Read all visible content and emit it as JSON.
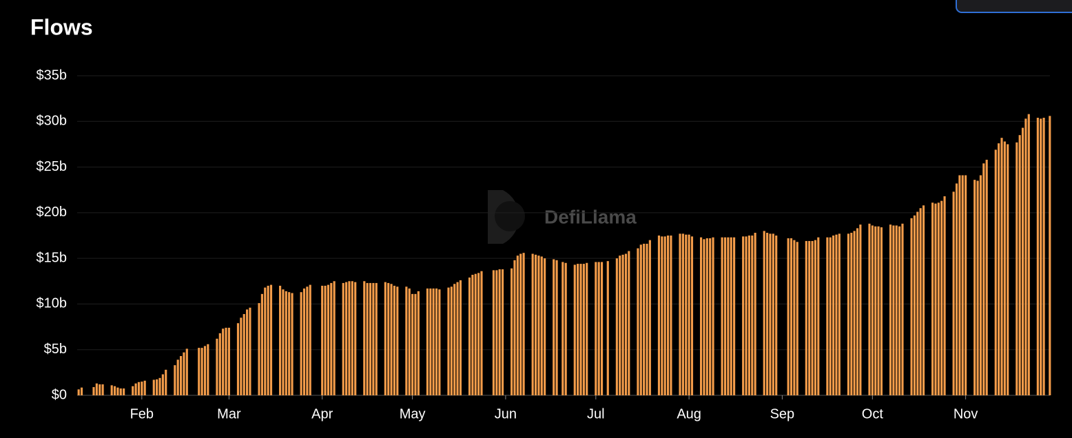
{
  "chart_data": {
    "type": "bar",
    "title": "Flows",
    "watermark": "DefiLlama",
    "color": "#f39c4a",
    "grid": true,
    "ylim": [
      0,
      35
    ],
    "yticks": [
      {
        "value": 0,
        "label": "$0"
      },
      {
        "value": 5,
        "label": "$5b"
      },
      {
        "value": 10,
        "label": "$10b"
      },
      {
        "value": 15,
        "label": "$15b"
      },
      {
        "value": 20,
        "label": "$20b"
      },
      {
        "value": 25,
        "label": "$25b"
      },
      {
        "value": 30,
        "label": "$30b"
      },
      {
        "value": 35,
        "label": "$35b"
      }
    ],
    "categories": [
      null,
      null,
      null,
      null,
      null,
      null,
      null,
      null,
      null,
      null,
      null,
      null,
      null,
      null,
      null,
      null,
      null,
      null,
      null,
      null,
      null,
      "Feb",
      null,
      null,
      null,
      null,
      null,
      null,
      null,
      null,
      null,
      null,
      null,
      null,
      null,
      null,
      null,
      null,
      null,
      null,
      null,
      null,
      null,
      null,
      null,
      null,
      null,
      null,
      null,
      null,
      "Mar",
      null,
      null,
      null,
      null,
      null,
      null,
      null,
      null,
      null,
      null,
      null,
      null,
      null,
      null,
      null,
      null,
      null,
      null,
      null,
      null,
      null,
      null,
      null,
      null,
      null,
      null,
      null,
      null,
      null,
      null,
      "Apr",
      null,
      null,
      null,
      null,
      null,
      null,
      null,
      null,
      null,
      null,
      null,
      null,
      null,
      null,
      null,
      null,
      null,
      null,
      null,
      null,
      null,
      null,
      null,
      null,
      null,
      null,
      null,
      null,
      null,
      "May",
      null,
      null,
      null,
      null,
      null,
      null,
      null,
      null,
      null,
      null,
      null,
      null,
      null,
      null,
      null,
      null,
      null,
      null,
      null,
      null,
      null,
      null,
      null,
      null,
      null,
      null,
      null,
      null,
      null,
      null,
      "Jun",
      null,
      null,
      null,
      null,
      null,
      null,
      null,
      null,
      null,
      null,
      null,
      null,
      null,
      null,
      null,
      null,
      null,
      null,
      null,
      null,
      null,
      null,
      null,
      null,
      null,
      null,
      null,
      null,
      null,
      "Jul",
      null,
      null,
      null,
      null,
      null,
      null,
      null,
      null,
      null,
      null,
      null,
      null,
      null,
      null,
      null,
      null,
      null,
      null,
      null,
      null,
      null,
      null,
      null,
      null,
      null,
      null,
      null,
      null,
      null,
      null,
      "Aug",
      null,
      null,
      null,
      null,
      null,
      null,
      null,
      null,
      null,
      null,
      null,
      null,
      null,
      null,
      null,
      null,
      null,
      null,
      null,
      null,
      null,
      null,
      null,
      null,
      null,
      null,
      null,
      null,
      null,
      null,
      "Sep",
      null,
      null,
      null,
      null,
      null,
      null,
      null,
      null,
      null,
      null,
      null,
      null,
      null,
      null,
      null,
      null,
      null,
      null,
      null,
      null,
      null,
      null,
      null,
      null,
      null,
      null,
      null,
      null,
      null,
      "Oct",
      null,
      null,
      null,
      null,
      null,
      null,
      null,
      null,
      null,
      null,
      null,
      null,
      null,
      null,
      null,
      null,
      null,
      null,
      null,
      null,
      null,
      null,
      null,
      null,
      null,
      null,
      null,
      null,
      null,
      null,
      "Nov",
      null,
      null,
      null,
      null,
      null,
      null,
      null,
      null,
      null,
      null,
      null,
      null,
      null,
      null,
      null,
      null,
      null,
      null,
      null,
      null,
      null,
      null,
      null,
      null,
      null,
      null,
      null,
      null
    ],
    "values": [
      0.65,
      0.85,
      null,
      null,
      null,
      0.9,
      1.3,
      1.2,
      1.2,
      null,
      null,
      1.1,
      1.0,
      0.85,
      0.75,
      0.75,
      null,
      null,
      1.0,
      1.3,
      1.45,
      1.5,
      1.6,
      null,
      null,
      1.7,
      1.75,
      1.9,
      2.3,
      2.8,
      null,
      null,
      3.3,
      3.9,
      4.3,
      4.7,
      5.1,
      null,
      null,
      null,
      5.2,
      5.2,
      5.4,
      5.6,
      null,
      null,
      6.2,
      6.8,
      7.3,
      7.4,
      7.4,
      null,
      null,
      7.9,
      8.5,
      8.9,
      9.4,
      9.6,
      null,
      null,
      10.1,
      11.1,
      11.8,
      12.0,
      12.1,
      null,
      null,
      12.0,
      11.6,
      11.4,
      11.3,
      11.2,
      null,
      null,
      11.3,
      11.7,
      11.9,
      12.1,
      null,
      null,
      null,
      12.0,
      12.0,
      12.1,
      12.3,
      12.5,
      null,
      null,
      12.3,
      12.4,
      12.5,
      12.5,
      12.4,
      null,
      null,
      12.5,
      12.3,
      12.3,
      12.3,
      12.3,
      null,
      null,
      12.4,
      12.3,
      12.2,
      12.0,
      11.9,
      null,
      null,
      11.9,
      11.7,
      11.1,
      11.1,
      11.4,
      null,
      null,
      11.7,
      11.7,
      11.7,
      11.7,
      11.6,
      null,
      null,
      11.8,
      11.9,
      12.2,
      12.4,
      12.6,
      null,
      null,
      12.9,
      13.2,
      13.3,
      13.4,
      13.6,
      null,
      null,
      null,
      13.7,
      13.7,
      13.8,
      13.8,
      null,
      null,
      13.9,
      14.8,
      15.3,
      15.5,
      15.6,
      null,
      null,
      15.5,
      15.4,
      15.3,
      15.2,
      15.0,
      null,
      null,
      14.9,
      14.8,
      null,
      14.6,
      14.5,
      null,
      null,
      14.3,
      14.4,
      14.4,
      14.4,
      14.5,
      null,
      null,
      14.6,
      14.6,
      14.6,
      null,
      14.7,
      null,
      null,
      15.0,
      15.3,
      15.4,
      15.5,
      15.8,
      null,
      null,
      16.1,
      16.5,
      16.6,
      16.6,
      17.0,
      null,
      null,
      17.5,
      17.4,
      17.4,
      17.5,
      17.5,
      null,
      null,
      17.7,
      17.7,
      17.6,
      17.6,
      17.4,
      null,
      null,
      17.3,
      17.1,
      17.2,
      17.2,
      17.3,
      null,
      null,
      17.3,
      17.3,
      17.3,
      17.3,
      17.3,
      null,
      null,
      17.4,
      17.4,
      17.5,
      17.5,
      17.8,
      null,
      null,
      18.0,
      17.8,
      17.7,
      17.7,
      17.5,
      null,
      null,
      null,
      17.2,
      17.2,
      17.0,
      16.8,
      null,
      null,
      16.9,
      16.9,
      16.9,
      17.0,
      17.3,
      null,
      null,
      17.3,
      17.3,
      17.5,
      17.6,
      17.7,
      null,
      null,
      17.7,
      17.8,
      18.0,
      18.3,
      18.7,
      null,
      null,
      18.8,
      18.6,
      18.5,
      18.5,
      18.4,
      null,
      null,
      18.7,
      18.6,
      18.6,
      18.5,
      18.8,
      null,
      null,
      19.4,
      19.7,
      20.1,
      20.5,
      20.8,
      null,
      null,
      21.1,
      21.0,
      21.1,
      21.3,
      21.8,
      null,
      null,
      22.3,
      23.2,
      24.1,
      24.1,
      24.1,
      null,
      null,
      23.6,
      23.5,
      24.1,
      25.4,
      25.8,
      null,
      null,
      26.9,
      27.6,
      28.2,
      27.8,
      27.5,
      null,
      null,
      27.7,
      28.5,
      29.3,
      30.3,
      30.8,
      null,
      null,
      30.4,
      30.3,
      30.4,
      null,
      30.6
    ]
  }
}
